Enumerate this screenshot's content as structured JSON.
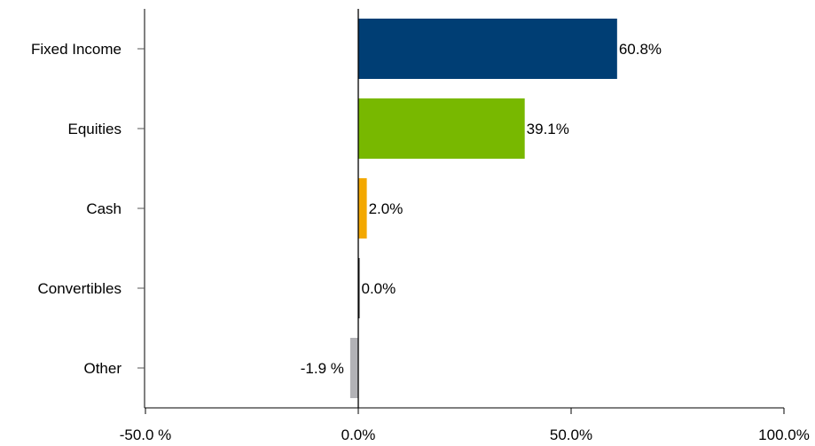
{
  "chart_data": {
    "type": "bar",
    "orientation": "horizontal",
    "categories": [
      "Fixed Income",
      "Equities",
      "Cash",
      "Convertibles",
      "Other"
    ],
    "values": [
      60.8,
      39.1,
      2.0,
      0.0,
      -1.9
    ],
    "value_labels": [
      "60.8%",
      "39.1%",
      "2.0%",
      "0.0%",
      "-1.9 %"
    ],
    "colors": [
      "#003e74",
      "#78b800",
      "#f3a800",
      "#1a1a1a",
      "#b2b2b6"
    ],
    "title": "",
    "xlabel": "",
    "ylabel": "",
    "xlim": [
      -50,
      100
    ],
    "xticks": [
      -50,
      0,
      50,
      100
    ],
    "xtick_labels": [
      "-50.0 %",
      "0.0%",
      "50.0%",
      "100.0%"
    ],
    "grid": false,
    "legend": "none"
  }
}
